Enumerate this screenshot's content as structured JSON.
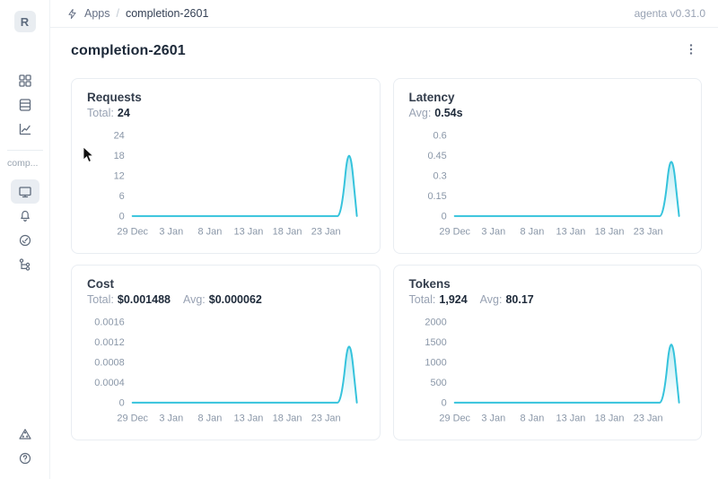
{
  "theme": {
    "chart_line": "#35c3dc",
    "sidebar_icon": "#5f6b7c",
    "tick_label": "#8a97a8",
    "selected_item_bg": "#e9edf2"
  },
  "header": {
    "breadcrumb": {
      "apps_label": "Apps",
      "separator": "/",
      "current": "completion-2601"
    },
    "version_label": "agenta v0.31.0"
  },
  "sidebar": {
    "avatar_letter": "R",
    "workspace_label": "comp...",
    "top_icons": [
      "grid-icon",
      "table-rows-icon",
      "line-chart-icon"
    ],
    "app_icons": [
      "monitor-icon",
      "bell-icon",
      "gauge-icon",
      "tree-icon"
    ],
    "bottom_icons": [
      "triangle-icon",
      "help-icon"
    ],
    "selected_icon": "monitor-icon"
  },
  "page": {
    "title": "completion-2601"
  },
  "cards": [
    {
      "title": "Requests",
      "stats": [
        {
          "label": "Total:",
          "value": "24"
        }
      ],
      "chart_data": {
        "type": "area",
        "title": "Requests",
        "x_tick_labels": [
          "29 Dec",
          "3 Jan",
          "8 Jan",
          "13 Jan",
          "18 Jan",
          "23 Jan"
        ],
        "x_tick_indices": [
          0,
          5,
          10,
          15,
          20,
          25
        ],
        "values": [
          0,
          0,
          0,
          0,
          0,
          0,
          0,
          0,
          0,
          0,
          0,
          0,
          0,
          0,
          0,
          0,
          0,
          0,
          0,
          0,
          0,
          0,
          0,
          0,
          0,
          0,
          0,
          0,
          24,
          0
        ],
        "y_tick_labels": [
          "0",
          "6",
          "12",
          "18",
          "24"
        ],
        "y_tick_values": [
          0,
          6,
          12,
          18,
          24
        ],
        "ylim": [
          0,
          24
        ],
        "grid": false,
        "legend": "none"
      }
    },
    {
      "title": "Latency",
      "stats": [
        {
          "label": "Avg:",
          "value": "0.54s"
        }
      ],
      "chart_data": {
        "type": "area",
        "title": "Latency",
        "x_tick_labels": [
          "29 Dec",
          "3 Jan",
          "8 Jan",
          "13 Jan",
          "18 Jan",
          "23 Jan"
        ],
        "x_tick_indices": [
          0,
          5,
          10,
          15,
          20,
          25
        ],
        "values": [
          0,
          0,
          0,
          0,
          0,
          0,
          0,
          0,
          0,
          0,
          0,
          0,
          0,
          0,
          0,
          0,
          0,
          0,
          0,
          0,
          0,
          0,
          0,
          0,
          0,
          0,
          0,
          0,
          0.54,
          0
        ],
        "y_tick_labels": [
          "0",
          "0.15",
          "0.3",
          "0.45",
          "0.6"
        ],
        "y_tick_values": [
          0,
          0.15,
          0.3,
          0.45,
          0.6
        ],
        "ylim": [
          0,
          0.6
        ],
        "grid": false,
        "legend": "none"
      }
    },
    {
      "title": "Cost",
      "stats": [
        {
          "label": "Total:",
          "value": "$0.001488"
        },
        {
          "label": "Avg:",
          "value": "$0.000062"
        }
      ],
      "chart_data": {
        "type": "area",
        "title": "Cost",
        "x_tick_labels": [
          "29 Dec",
          "3 Jan",
          "8 Jan",
          "13 Jan",
          "18 Jan",
          "23 Jan"
        ],
        "x_tick_indices": [
          0,
          5,
          10,
          15,
          20,
          25
        ],
        "values": [
          0,
          0,
          0,
          0,
          0,
          0,
          0,
          0,
          0,
          0,
          0,
          0,
          0,
          0,
          0,
          0,
          0,
          0,
          0,
          0,
          0,
          0,
          0,
          0,
          0,
          0,
          0,
          0,
          0.001488,
          0
        ],
        "y_tick_labels": [
          "0",
          "0.0004",
          "0.0008",
          "0.0012",
          "0.0016"
        ],
        "y_tick_values": [
          0,
          0.0004,
          0.0008,
          0.0012,
          0.0016
        ],
        "ylim": [
          0,
          0.0016
        ],
        "grid": false,
        "legend": "none"
      }
    },
    {
      "title": "Tokens",
      "stats": [
        {
          "label": "Total:",
          "value": "1,924"
        },
        {
          "label": "Avg:",
          "value": "80.17"
        }
      ],
      "chart_data": {
        "type": "area",
        "title": "Tokens",
        "x_tick_labels": [
          "29 Dec",
          "3 Jan",
          "8 Jan",
          "13 Jan",
          "18 Jan",
          "23 Jan"
        ],
        "x_tick_indices": [
          0,
          5,
          10,
          15,
          20,
          25
        ],
        "values": [
          0,
          0,
          0,
          0,
          0,
          0,
          0,
          0,
          0,
          0,
          0,
          0,
          0,
          0,
          0,
          0,
          0,
          0,
          0,
          0,
          0,
          0,
          0,
          0,
          0,
          0,
          0,
          0,
          1924,
          0
        ],
        "y_tick_labels": [
          "0",
          "500",
          "1000",
          "1500",
          "2000"
        ],
        "y_tick_values": [
          0,
          500,
          1000,
          1500,
          2000
        ],
        "ylim": [
          0,
          2000
        ],
        "grid": false,
        "legend": "none"
      }
    }
  ]
}
